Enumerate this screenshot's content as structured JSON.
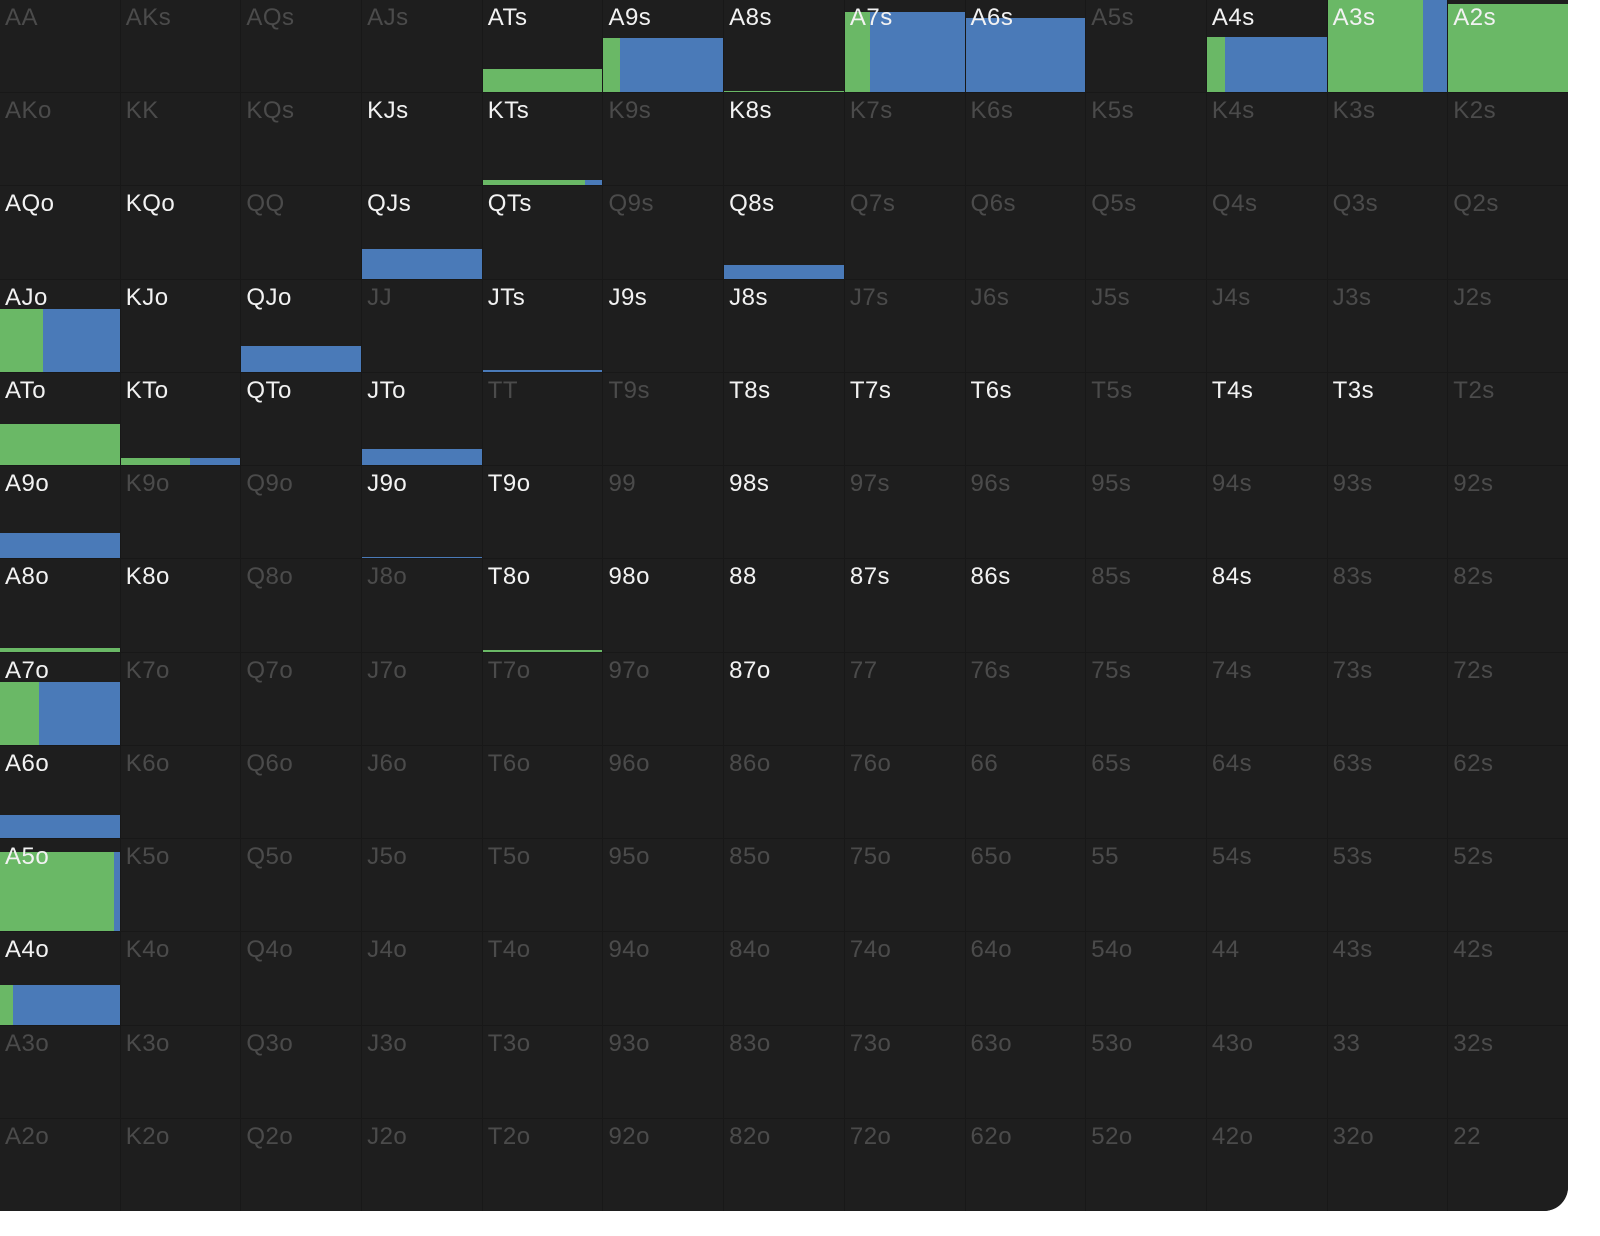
{
  "legend_colors": {
    "green": "#6ab866",
    "blue": "#4a7ab8",
    "active_text": "#f2f2f2",
    "inactive_text": "#4b4b4b",
    "background": "#1e1e1e"
  },
  "rows": [
    [
      {
        "hand": "AA",
        "active": false
      },
      {
        "hand": "AKs",
        "active": false
      },
      {
        "hand": "AQs",
        "active": false
      },
      {
        "hand": "AJs",
        "active": false
      },
      {
        "hand": "ATs",
        "active": true,
        "freq": 0.25,
        "green": 1.0
      },
      {
        "hand": "A9s",
        "active": true,
        "freq": 0.59,
        "green": 0.14
      },
      {
        "hand": "A8s",
        "active": true,
        "freq": 0.01,
        "green": 1.0
      },
      {
        "hand": "A7s",
        "active": true,
        "freq": 0.87,
        "green": 0.21
      },
      {
        "hand": "A6s",
        "active": true,
        "freq": 0.81,
        "green": 0.0
      },
      {
        "hand": "A5s",
        "active": false
      },
      {
        "hand": "A4s",
        "active": true,
        "freq": 0.6,
        "green": 0.15
      },
      {
        "hand": "A3s",
        "active": true,
        "freq": 1.0,
        "green": 0.8
      },
      {
        "hand": "A2s",
        "active": true,
        "freq": 0.96,
        "green": 1.0
      }
    ],
    [
      {
        "hand": "AKo",
        "active": false
      },
      {
        "hand": "KK",
        "active": false
      },
      {
        "hand": "KQs",
        "active": false
      },
      {
        "hand": "KJs",
        "active": true
      },
      {
        "hand": "KTs",
        "active": true,
        "freq": 0.06,
        "green": 0.85
      },
      {
        "hand": "K9s",
        "active": false
      },
      {
        "hand": "K8s",
        "active": true
      },
      {
        "hand": "K7s",
        "active": false
      },
      {
        "hand": "K6s",
        "active": false
      },
      {
        "hand": "K5s",
        "active": false
      },
      {
        "hand": "K4s",
        "active": false
      },
      {
        "hand": "K3s",
        "active": false
      },
      {
        "hand": "K2s",
        "active": false
      }
    ],
    [
      {
        "hand": "AQo",
        "active": true
      },
      {
        "hand": "KQo",
        "active": true
      },
      {
        "hand": "QQ",
        "active": false
      },
      {
        "hand": "QJs",
        "active": true,
        "freq": 0.32,
        "green": 0.0
      },
      {
        "hand": "QTs",
        "active": true
      },
      {
        "hand": "Q9s",
        "active": false
      },
      {
        "hand": "Q8s",
        "active": true,
        "freq": 0.15,
        "green": 0.0
      },
      {
        "hand": "Q7s",
        "active": false
      },
      {
        "hand": "Q6s",
        "active": false
      },
      {
        "hand": "Q5s",
        "active": false
      },
      {
        "hand": "Q4s",
        "active": false
      },
      {
        "hand": "Q3s",
        "active": false
      },
      {
        "hand": "Q2s",
        "active": false
      }
    ],
    [
      {
        "hand": "AJo",
        "active": true,
        "freq": 0.68,
        "green": 0.36
      },
      {
        "hand": "KJo",
        "active": true
      },
      {
        "hand": "QJo",
        "active": true,
        "freq": 0.28,
        "green": 0.0
      },
      {
        "hand": "JJ",
        "active": false
      },
      {
        "hand": "JTs",
        "active": true,
        "freq": 0.02,
        "green": 0.0
      },
      {
        "hand": "J9s",
        "active": true
      },
      {
        "hand": "J8s",
        "active": true
      },
      {
        "hand": "J7s",
        "active": false
      },
      {
        "hand": "J6s",
        "active": false
      },
      {
        "hand": "J5s",
        "active": false
      },
      {
        "hand": "J4s",
        "active": false
      },
      {
        "hand": "J3s",
        "active": false
      },
      {
        "hand": "J2s",
        "active": false
      }
    ],
    [
      {
        "hand": "ATo",
        "active": true,
        "freq": 0.45,
        "green": 1.0
      },
      {
        "hand": "KTo",
        "active": true,
        "freq": 0.08,
        "green": 0.58
      },
      {
        "hand": "QTo",
        "active": true
      },
      {
        "hand": "JTo",
        "active": true,
        "freq": 0.18,
        "green": 0.0
      },
      {
        "hand": "TT",
        "active": false
      },
      {
        "hand": "T9s",
        "active": false
      },
      {
        "hand": "T8s",
        "active": true
      },
      {
        "hand": "T7s",
        "active": true
      },
      {
        "hand": "T6s",
        "active": true
      },
      {
        "hand": "T5s",
        "active": false
      },
      {
        "hand": "T4s",
        "active": true
      },
      {
        "hand": "T3s",
        "active": true
      },
      {
        "hand": "T2s",
        "active": false
      }
    ],
    [
      {
        "hand": "A9o",
        "active": true,
        "freq": 0.27,
        "green": 0.0
      },
      {
        "hand": "K9o",
        "active": false
      },
      {
        "hand": "Q9o",
        "active": false
      },
      {
        "hand": "J9o",
        "active": true,
        "freq": 0.02,
        "green": 0.0
      },
      {
        "hand": "T9o",
        "active": true
      },
      {
        "hand": "99",
        "active": false
      },
      {
        "hand": "98s",
        "active": true
      },
      {
        "hand": "97s",
        "active": false
      },
      {
        "hand": "96s",
        "active": false
      },
      {
        "hand": "95s",
        "active": false
      },
      {
        "hand": "94s",
        "active": false
      },
      {
        "hand": "93s",
        "active": false
      },
      {
        "hand": "92s",
        "active": false
      }
    ],
    [
      {
        "hand": "A8o",
        "active": true,
        "freq": 0.04,
        "green": 1.0
      },
      {
        "hand": "K8o",
        "active": true
      },
      {
        "hand": "Q8o",
        "active": false
      },
      {
        "hand": "J8o",
        "active": false
      },
      {
        "hand": "T8o",
        "active": true,
        "freq": 0.02,
        "green": 1.0
      },
      {
        "hand": "98o",
        "active": true
      },
      {
        "hand": "88",
        "active": true
      },
      {
        "hand": "87s",
        "active": true
      },
      {
        "hand": "86s",
        "active": true
      },
      {
        "hand": "85s",
        "active": false
      },
      {
        "hand": "84s",
        "active": true
      },
      {
        "hand": "83s",
        "active": false
      },
      {
        "hand": "82s",
        "active": false
      }
    ],
    [
      {
        "hand": "A7o",
        "active": true,
        "freq": 0.68,
        "green": 0.33
      },
      {
        "hand": "K7o",
        "active": false
      },
      {
        "hand": "Q7o",
        "active": false
      },
      {
        "hand": "J7o",
        "active": false
      },
      {
        "hand": "T7o",
        "active": false
      },
      {
        "hand": "97o",
        "active": false
      },
      {
        "hand": "87o",
        "active": true
      },
      {
        "hand": "77",
        "active": false
      },
      {
        "hand": "76s",
        "active": false
      },
      {
        "hand": "75s",
        "active": false
      },
      {
        "hand": "74s",
        "active": false
      },
      {
        "hand": "73s",
        "active": false
      },
      {
        "hand": "72s",
        "active": false
      }
    ],
    [
      {
        "hand": "A6o",
        "active": true,
        "freq": 0.25,
        "green": 0.0
      },
      {
        "hand": "K6o",
        "active": false
      },
      {
        "hand": "Q6o",
        "active": false
      },
      {
        "hand": "J6o",
        "active": false
      },
      {
        "hand": "T6o",
        "active": false
      },
      {
        "hand": "96o",
        "active": false
      },
      {
        "hand": "86o",
        "active": false
      },
      {
        "hand": "76o",
        "active": false
      },
      {
        "hand": "66",
        "active": false
      },
      {
        "hand": "65s",
        "active": false
      },
      {
        "hand": "64s",
        "active": false
      },
      {
        "hand": "63s",
        "active": false
      },
      {
        "hand": "62s",
        "active": false
      }
    ],
    [
      {
        "hand": "A5o",
        "active": true,
        "freq": 0.86,
        "green": 0.95
      },
      {
        "hand": "K5o",
        "active": false
      },
      {
        "hand": "Q5o",
        "active": false
      },
      {
        "hand": "J5o",
        "active": false
      },
      {
        "hand": "T5o",
        "active": false
      },
      {
        "hand": "95o",
        "active": false
      },
      {
        "hand": "85o",
        "active": false
      },
      {
        "hand": "75o",
        "active": false
      },
      {
        "hand": "65o",
        "active": false
      },
      {
        "hand": "55",
        "active": false
      },
      {
        "hand": "54s",
        "active": false
      },
      {
        "hand": "53s",
        "active": false
      },
      {
        "hand": "52s",
        "active": false
      }
    ],
    [
      {
        "hand": "A4o",
        "active": true,
        "freq": 0.43,
        "green": 0.11
      },
      {
        "hand": "K4o",
        "active": false
      },
      {
        "hand": "Q4o",
        "active": false
      },
      {
        "hand": "J4o",
        "active": false
      },
      {
        "hand": "T4o",
        "active": false
      },
      {
        "hand": "94o",
        "active": false
      },
      {
        "hand": "84o",
        "active": false
      },
      {
        "hand": "74o",
        "active": false
      },
      {
        "hand": "64o",
        "active": false
      },
      {
        "hand": "54o",
        "active": false
      },
      {
        "hand": "44",
        "active": false
      },
      {
        "hand": "43s",
        "active": false
      },
      {
        "hand": "42s",
        "active": false
      }
    ],
    [
      {
        "hand": "A3o",
        "active": false
      },
      {
        "hand": "K3o",
        "active": false
      },
      {
        "hand": "Q3o",
        "active": false
      },
      {
        "hand": "J3o",
        "active": false
      },
      {
        "hand": "T3o",
        "active": false
      },
      {
        "hand": "93o",
        "active": false
      },
      {
        "hand": "83o",
        "active": false
      },
      {
        "hand": "73o",
        "active": false
      },
      {
        "hand": "63o",
        "active": false
      },
      {
        "hand": "53o",
        "active": false
      },
      {
        "hand": "43o",
        "active": false
      },
      {
        "hand": "33",
        "active": false
      },
      {
        "hand": "32s",
        "active": false
      }
    ],
    [
      {
        "hand": "A2o",
        "active": false
      },
      {
        "hand": "K2o",
        "active": false
      },
      {
        "hand": "Q2o",
        "active": false
      },
      {
        "hand": "J2o",
        "active": false
      },
      {
        "hand": "T2o",
        "active": false
      },
      {
        "hand": "92o",
        "active": false
      },
      {
        "hand": "82o",
        "active": false
      },
      {
        "hand": "72o",
        "active": false
      },
      {
        "hand": "62o",
        "active": false
      },
      {
        "hand": "52o",
        "active": false
      },
      {
        "hand": "42o",
        "active": false
      },
      {
        "hand": "32o",
        "active": false
      },
      {
        "hand": "22",
        "active": false
      }
    ]
  ]
}
